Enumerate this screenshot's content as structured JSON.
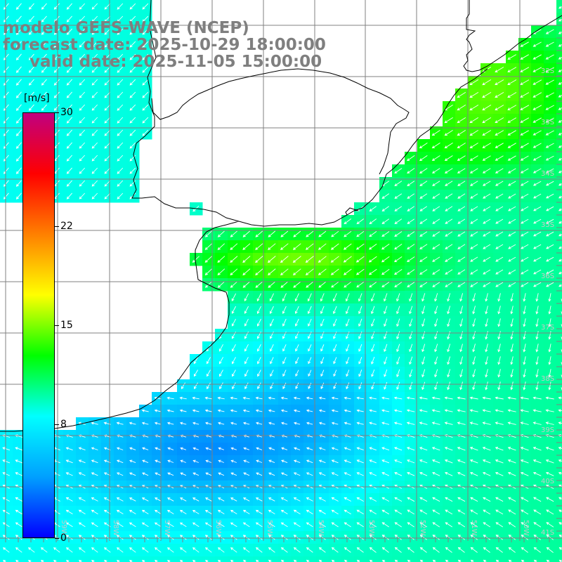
{
  "title": {
    "line1": "modelo GEFS-WAVE (NCEP)",
    "line2": "forecast date: 2025-10-29 18:00:00",
    "line3": "valid date: 2025-11-05 15:00:00"
  },
  "colorbar": {
    "unit": "[m/s]",
    "min": 0,
    "max": 30,
    "ticks": [
      "30",
      "22",
      "15",
      "8",
      "0"
    ],
    "tick_values": [
      30,
      22,
      15,
      8,
      0
    ],
    "stops": [
      "#0000ff",
      "#00a0ff",
      "#00ffff",
      "#00ff00",
      "#ffff00",
      "#ff8000",
      "#ff0000",
      "#c00080"
    ]
  },
  "map": {
    "lat_labels": [
      "32S",
      "33S",
      "34S",
      "35S",
      "36S",
      "37S",
      "38S",
      "39S",
      "40S",
      "41S"
    ],
    "lon_labels": [
      "59W",
      "58W",
      "57W",
      "56W",
      "55W",
      "54W",
      "53W",
      "52W",
      "51W",
      "50W"
    ],
    "colors": {
      "land": "#ffffff",
      "coast": "#000000",
      "grid": "#808080",
      "arrow": "#ffffff"
    }
  }
}
